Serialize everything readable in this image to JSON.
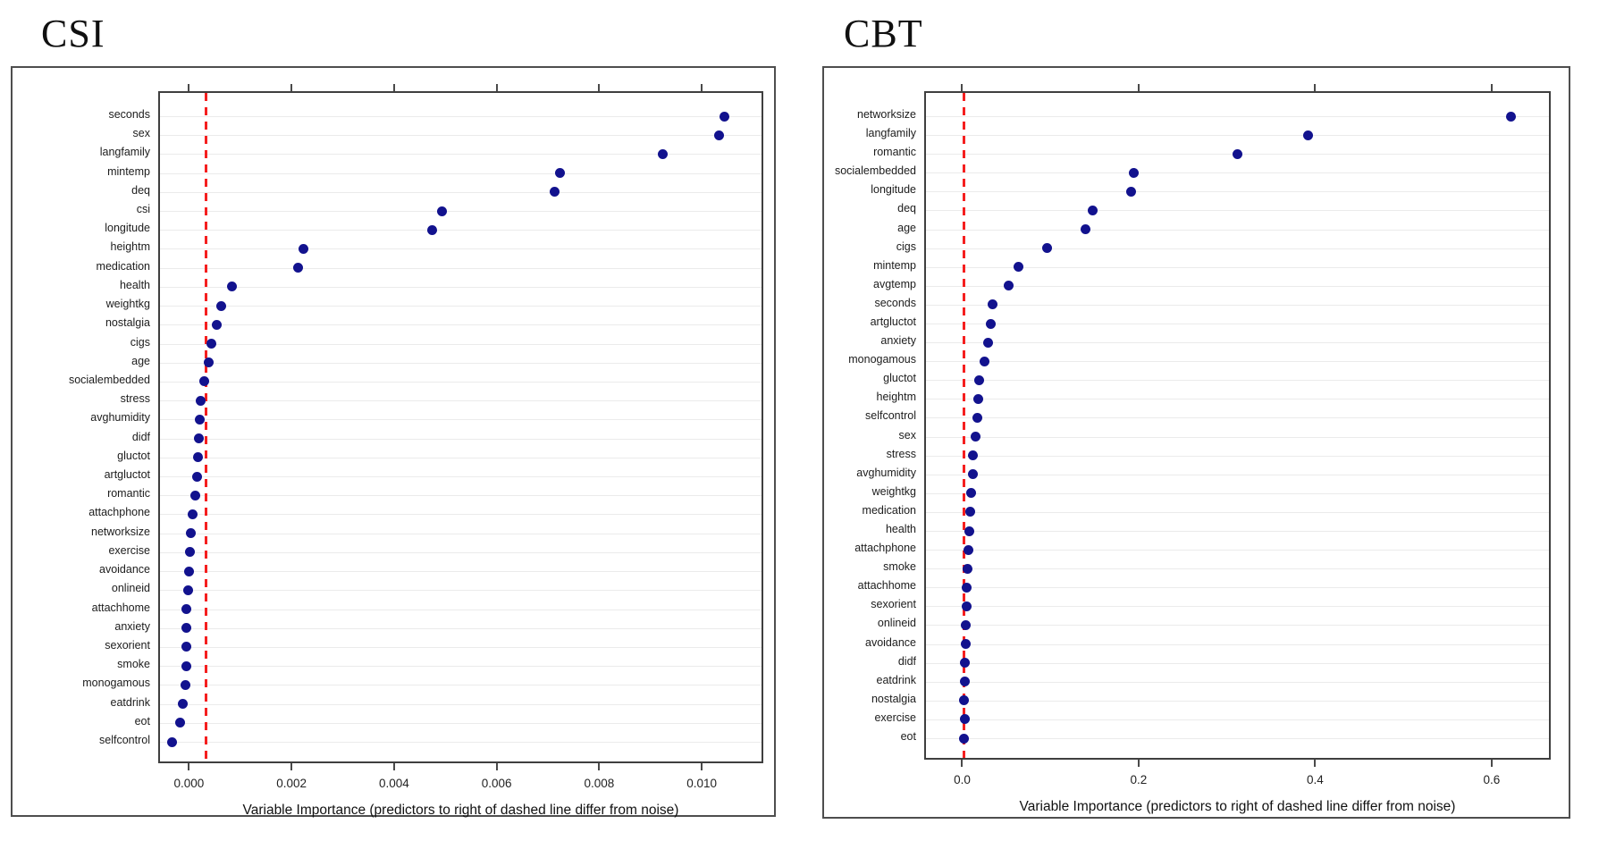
{
  "figure": {
    "background": "#ffffff",
    "point_color": "#12128e",
    "dash_color": "#f51f1f",
    "grid_color": "#ebebeb",
    "box_color": "#3f3f3f"
  },
  "chart_data": [
    {
      "type": "scatter",
      "title": "CSI",
      "xlabel": "Variable Importance (predictors to right of dashed line differ from noise)",
      "ylabel": "",
      "legend": null,
      "grid": "horizontal",
      "xlim": [
        -0.0006,
        0.0112
      ],
      "ticks": [
        0.0,
        0.002,
        0.004,
        0.006,
        0.008,
        0.01
      ],
      "tick_labels": [
        "0.000",
        "0.002",
        "0.004",
        "0.006",
        "0.008",
        "0.010"
      ],
      "dashed_line_x": 0.0003,
      "categories": [
        "seconds",
        "sex",
        "langfamily",
        "mintemp",
        "deq",
        "csi",
        "longitude",
        "heightm",
        "medication",
        "health",
        "weightkg",
        "nostalgia",
        "cigs",
        "age",
        "socialembedded",
        "stress",
        "avghumidity",
        "didf",
        "gluctot",
        "artgluctot",
        "romantic",
        "attachphone",
        "networksize",
        "exercise",
        "avoidance",
        "onlineid",
        "attachhome",
        "anxiety",
        "sexorient",
        "smoke",
        "monogamous",
        "eatdrink",
        "eot",
        "selfcontrol"
      ],
      "values": [
        0.0104,
        0.0103,
        0.0092,
        0.0072,
        0.0071,
        0.0049,
        0.0047,
        0.0022,
        0.0021,
        0.0008,
        0.0006,
        0.0005,
        0.0004,
        0.00035,
        0.00026,
        0.0002,
        0.00017,
        0.00016,
        0.00014,
        0.00012,
        9e-05,
        3e-05,
        0.0,
        -2e-05,
        -4e-05,
        -5e-05,
        -8e-05,
        -8e-05,
        -8e-05,
        -8e-05,
        -0.0001,
        -0.00016,
        -0.0002,
        -0.00036
      ]
    },
    {
      "type": "scatter",
      "title": "CBT",
      "xlabel": "Variable Importance (predictors to right of dashed line differ from noise)",
      "ylabel": "",
      "legend": null,
      "grid": "horizontal",
      "xlim": [
        -0.043,
        0.667
      ],
      "ticks": [
        0.0,
        0.2,
        0.4,
        0.6
      ],
      "tick_labels": [
        "0.0",
        "0.2",
        "0.4",
        "0.6"
      ],
      "dashed_line_x": 0.0,
      "categories": [
        "networksize",
        "langfamily",
        "romantic",
        "socialembedded",
        "longitude",
        "deq",
        "age",
        "cigs",
        "mintemp",
        "avgtemp",
        "seconds",
        "artgluctot",
        "anxiety",
        "monogamous",
        "gluctot",
        "heightm",
        "selfcontrol",
        "sex",
        "stress",
        "avghumidity",
        "weightkg",
        "medication",
        "health",
        "attachphone",
        "smoke",
        "attachhome",
        "sexorient",
        "onlineid",
        "avoidance",
        "didf",
        "eatdrink",
        "nostalgia",
        "exercise",
        "eot"
      ],
      "values": [
        0.62,
        0.39,
        0.31,
        0.192,
        0.189,
        0.146,
        0.138,
        0.094,
        0.062,
        0.051,
        0.032,
        0.03,
        0.027,
        0.023,
        0.017,
        0.016,
        0.015,
        0.013,
        0.01,
        0.01,
        0.008,
        0.007,
        0.006,
        0.005,
        0.004,
        0.003,
        0.003,
        0.002,
        0.002,
        0.001,
        0.001,
        0.0,
        0.001,
        0.0
      ]
    }
  ]
}
